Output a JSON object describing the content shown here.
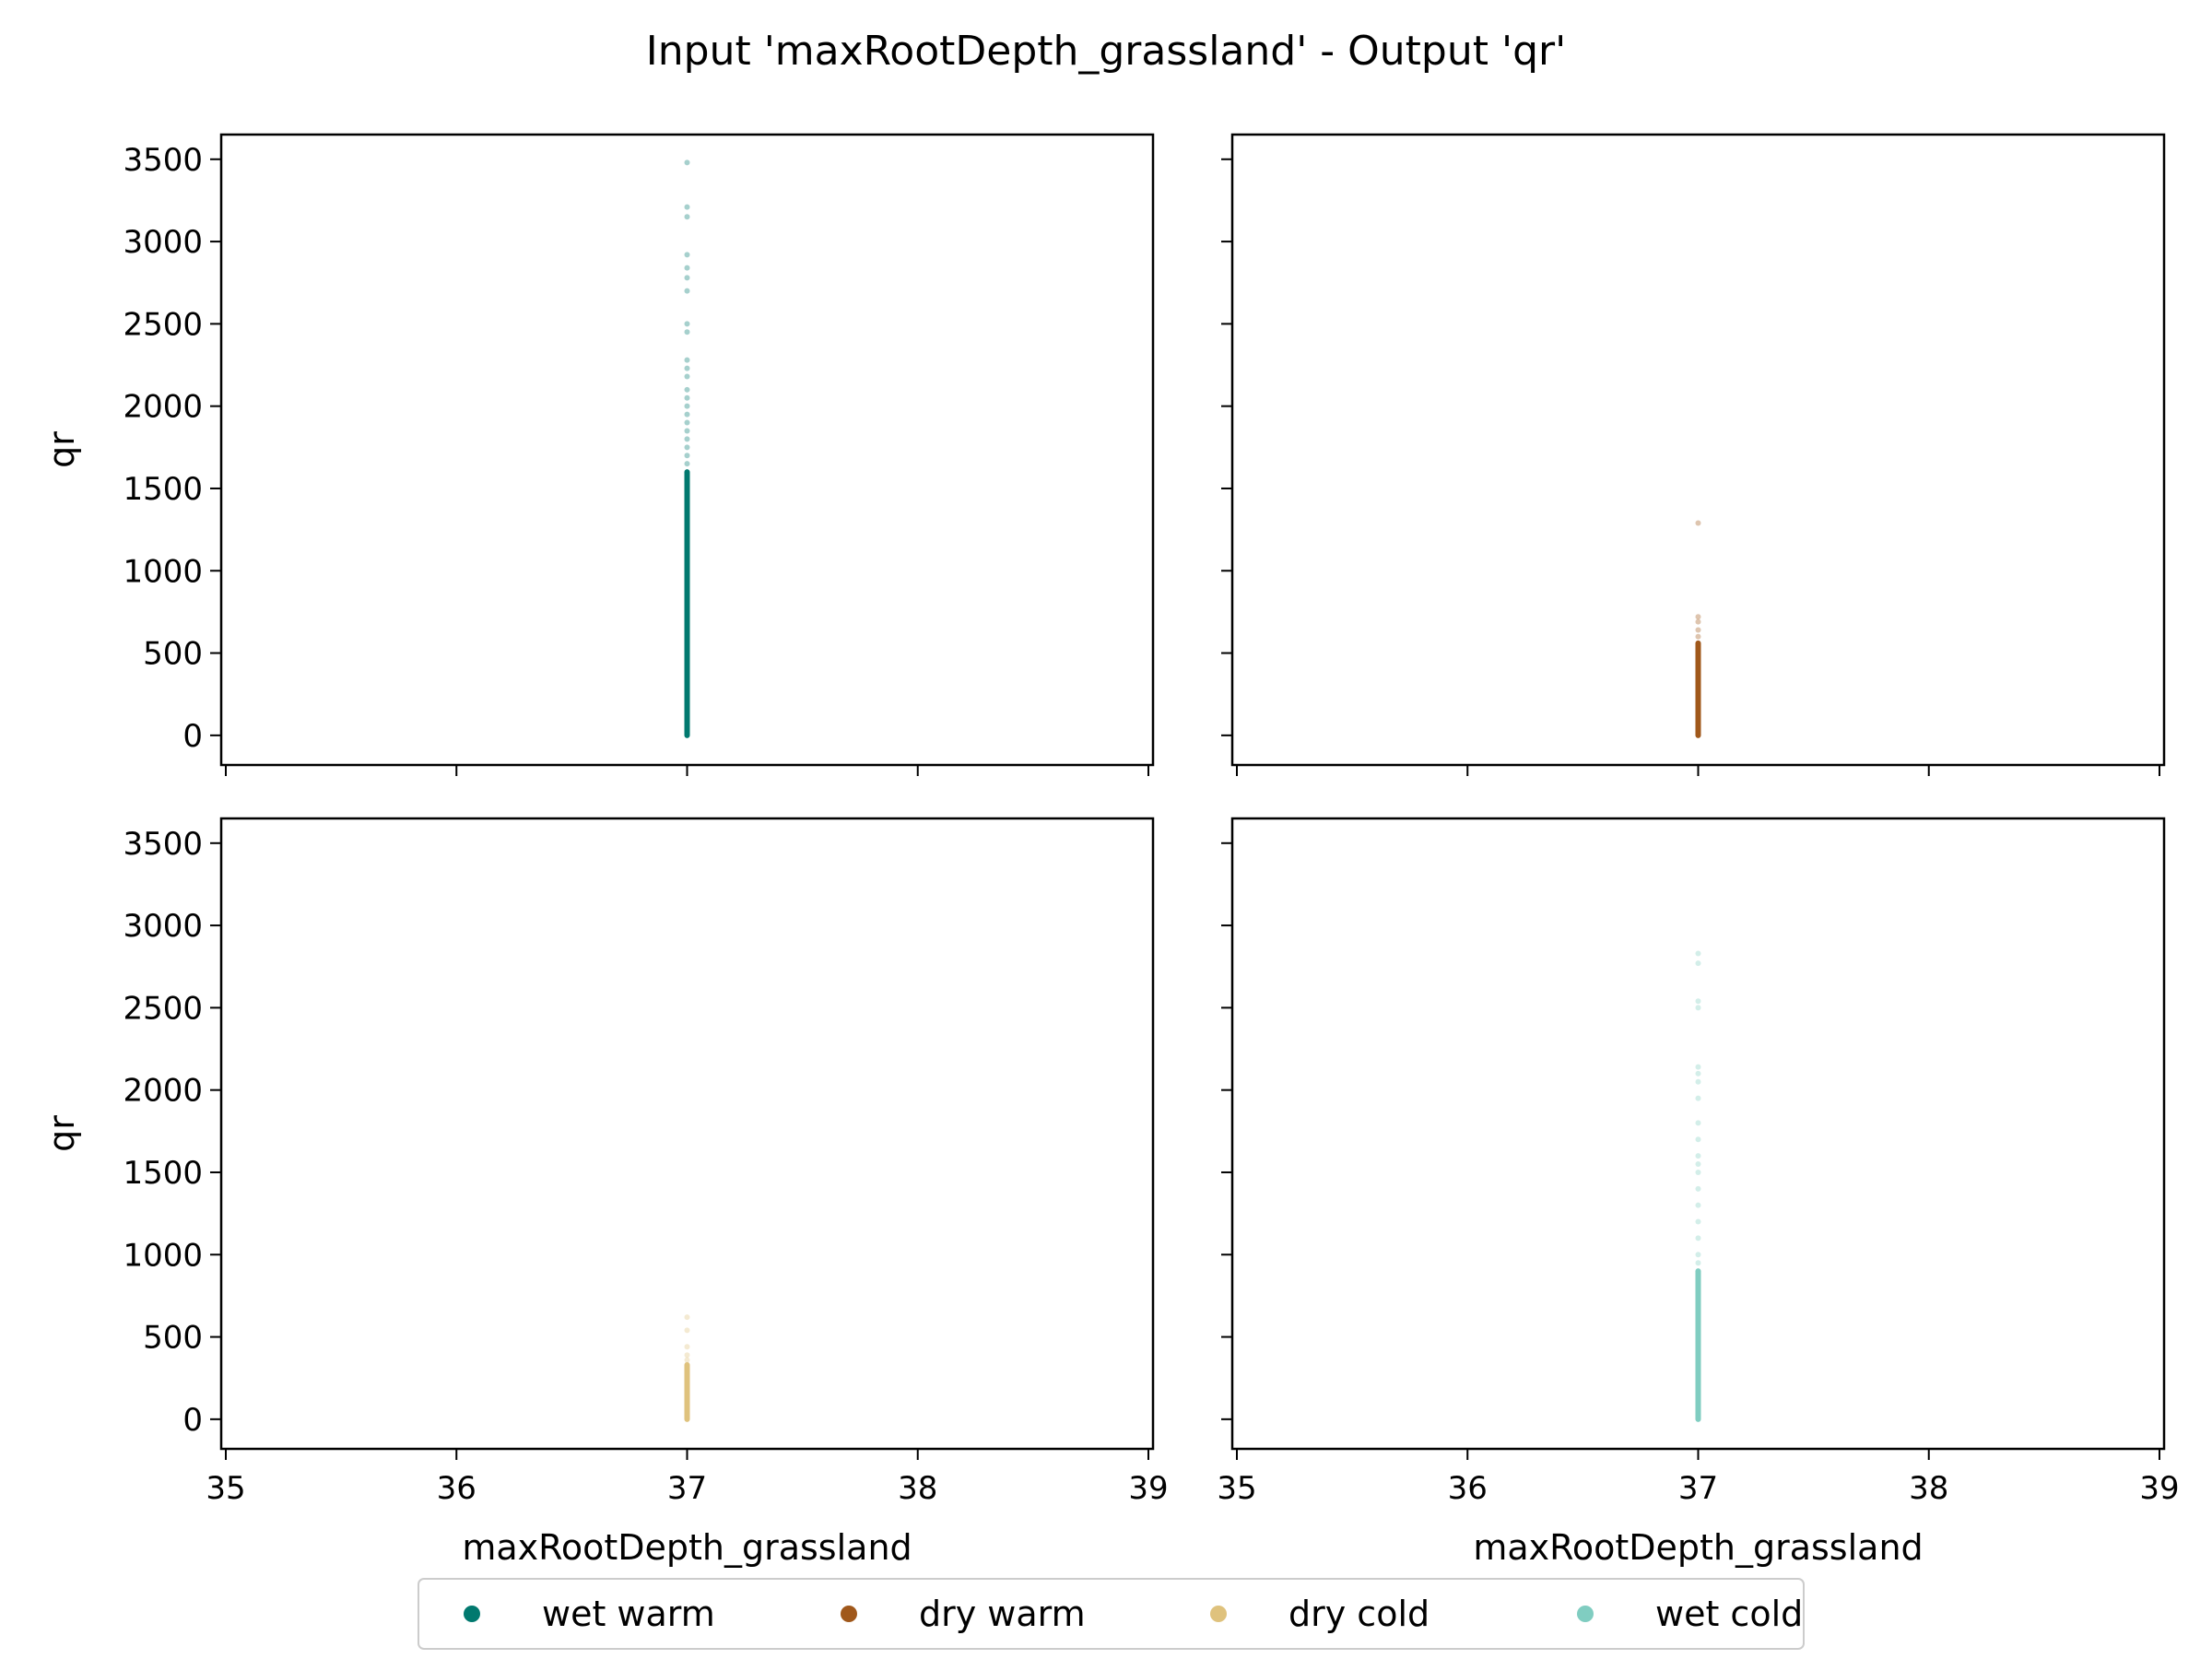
{
  "chart_data": {
    "type": "scatter",
    "title": "Input 'maxRootDepth_grassland' - Output 'qr'",
    "xlabel": "maxRootDepth_grassland",
    "ylabel": "qr",
    "xlim": [
      34.98,
      39.02
    ],
    "ylim": [
      -180,
      3650
    ],
    "xticks": [
      "35",
      "36",
      "37",
      "38",
      "39"
    ],
    "yticks": [
      "0",
      "500",
      "1000",
      "1500",
      "2000",
      "2500",
      "3000",
      "3500"
    ],
    "grid": false,
    "legend_position": "bottom-center",
    "panels": [
      {
        "series": "wet warm",
        "color": "#01796f",
        "x": 37,
        "dense_range": [
          0,
          1600
        ],
        "sparse_points": [
          1650,
          1700,
          1750,
          1800,
          1850,
          1900,
          1950,
          2000,
          2050,
          2100,
          2180,
          2230,
          2280,
          2450,
          2500,
          2700,
          2780,
          2840,
          2920,
          3150,
          3210,
          3480
        ]
      },
      {
        "series": "dry warm",
        "color": "#a0581b",
        "x": 37,
        "dense_range": [
          0,
          560
        ],
        "sparse_points": [
          600,
          640,
          690,
          720,
          1290
        ]
      },
      {
        "series": "dry cold",
        "color": "#dfc27d",
        "x": 37,
        "dense_range": [
          0,
          330
        ],
        "sparse_points": [
          360,
          390,
          440,
          540,
          620
        ]
      },
      {
        "series": "wet cold",
        "color": "#80cdc1",
        "x": 37,
        "dense_range": [
          0,
          900
        ],
        "sparse_points": [
          950,
          1000,
          1100,
          1200,
          1300,
          1400,
          1500,
          1550,
          1600,
          1700,
          1800,
          1950,
          2050,
          2100,
          2140,
          2500,
          2540,
          2770,
          2830
        ]
      }
    ],
    "legend": [
      {
        "label": "wet warm",
        "color": "#01796f"
      },
      {
        "label": "dry warm",
        "color": "#a0581b"
      },
      {
        "label": "dry cold",
        "color": "#dfc27d"
      },
      {
        "label": "wet cold",
        "color": "#80cdc1"
      }
    ]
  }
}
